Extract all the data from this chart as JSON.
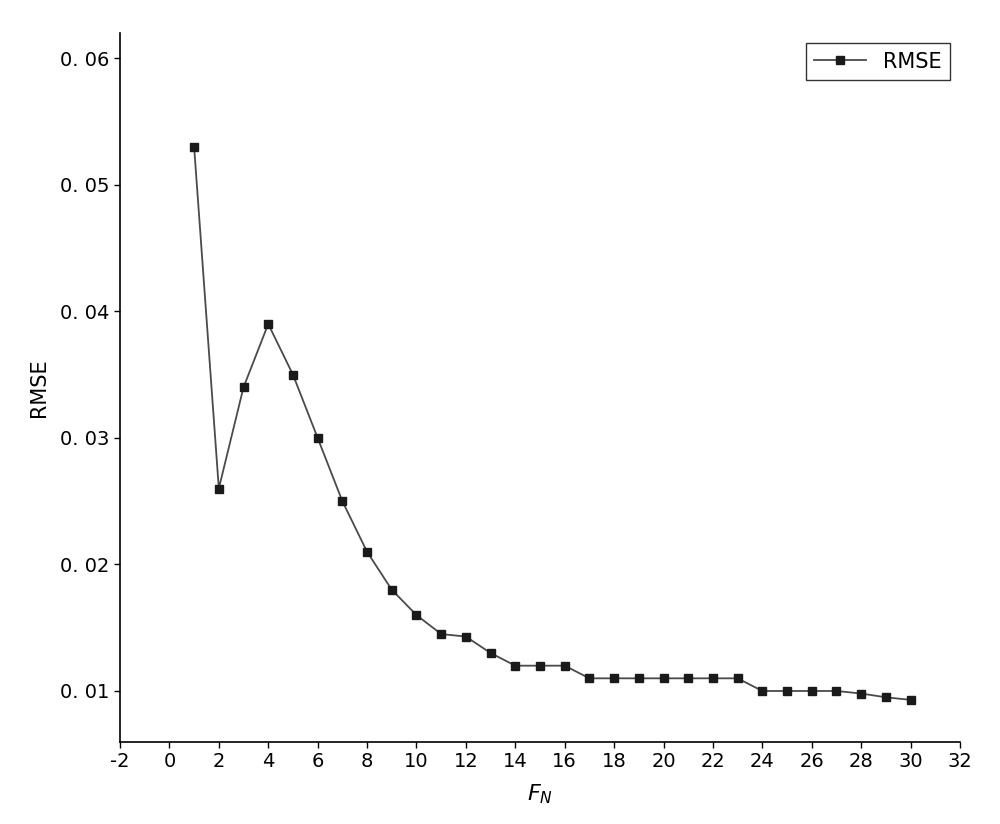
{
  "x": [
    1,
    2,
    3,
    4,
    5,
    6,
    7,
    8,
    9,
    10,
    11,
    12,
    13,
    14,
    15,
    16,
    17,
    18,
    19,
    20,
    21,
    22,
    23,
    24,
    25,
    26,
    27,
    28,
    29,
    30
  ],
  "y": [
    0.053,
    0.026,
    0.034,
    0.039,
    0.035,
    0.03,
    0.025,
    0.021,
    0.018,
    0.016,
    0.0145,
    0.0143,
    0.013,
    0.012,
    0.012,
    0.012,
    0.011,
    0.011,
    0.011,
    0.011,
    0.011,
    0.011,
    0.011,
    0.01,
    0.01,
    0.01,
    0.01,
    0.0098,
    0.0095,
    0.0093
  ],
  "xlim": [
    -2,
    32
  ],
  "ylim": [
    0.006,
    0.062
  ],
  "xticks": [
    -2,
    0,
    2,
    4,
    6,
    8,
    10,
    12,
    14,
    16,
    18,
    20,
    22,
    24,
    26,
    28,
    30,
    32
  ],
  "yticks": [
    0.01,
    0.02,
    0.03,
    0.04,
    0.05,
    0.06
  ],
  "xlabel": "$F_{N}$",
  "ylabel": "RMSE",
  "line_color": "#4a4a4a",
  "marker": "s",
  "marker_size": 6,
  "marker_facecolor": "#1a1a1a",
  "legend_label": "RMSE",
  "background_color": "#ffffff",
  "axis_fontsize": 15,
  "tick_fontsize": 14
}
